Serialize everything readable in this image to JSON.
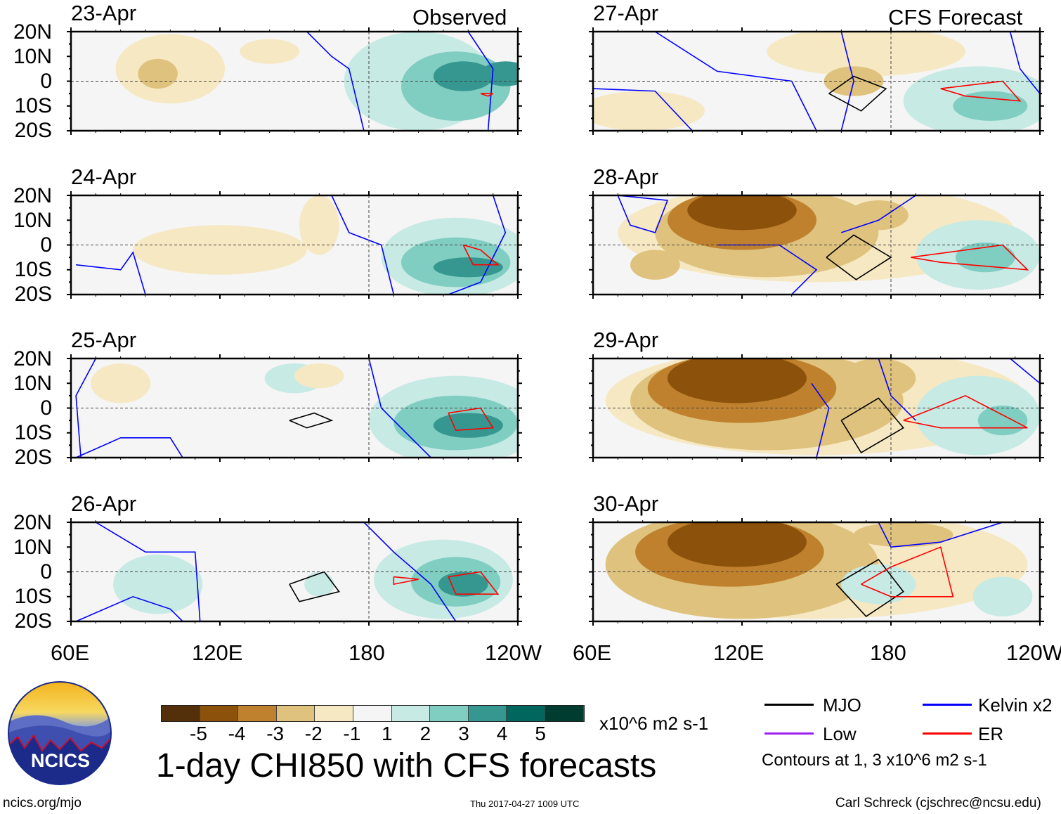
{
  "header": {
    "observed_label": "Observed",
    "forecast_label": "CFS Forecast"
  },
  "observed_panels": [
    {
      "date": "23-Apr"
    },
    {
      "date": "24-Apr"
    },
    {
      "date": "25-Apr"
    },
    {
      "date": "26-Apr"
    }
  ],
  "forecast_panels": [
    {
      "date": "27-Apr"
    },
    {
      "date": "28-Apr"
    },
    {
      "date": "29-Apr"
    },
    {
      "date": "30-Apr"
    }
  ],
  "lat_labels": [
    "20N",
    "10N",
    "0",
    "10S",
    "20S"
  ],
  "lon_labels": [
    "60E",
    "120E",
    "180",
    "120W"
  ],
  "colorbar": {
    "colors": [
      "#54300a",
      "#8c510a",
      "#bf812d",
      "#dfc27d",
      "#f6e8c3",
      "#f5f5f5",
      "#c7eae5",
      "#80cdc1",
      "#35978f",
      "#01665e",
      "#003c30"
    ],
    "labels": [
      "-5",
      "-4",
      "-3",
      "-2",
      "-1",
      "1",
      "2",
      "3",
      "4",
      "5"
    ],
    "units": "x10^6 m2 s-1"
  },
  "title": "1-day CHI850 with CFS forecasts",
  "legend": {
    "items": [
      {
        "label": "MJO",
        "color": "#000000"
      },
      {
        "label": "Kelvin x2",
        "color": "#0000ff"
      },
      {
        "label": "Low",
        "color": "#a020f0"
      },
      {
        "label": "ER",
        "color": "#ff0000"
      }
    ],
    "note": "Contours at 1, 3 x10^6 m2 s-1"
  },
  "logo": {
    "text": "NCICS"
  },
  "footer": {
    "url": "ncics.org/mjo",
    "timestamp": "Thu 2017-04-27 1009 UTC",
    "author": "Carl Schreck (cjschrec@ncsu.edu)"
  }
}
